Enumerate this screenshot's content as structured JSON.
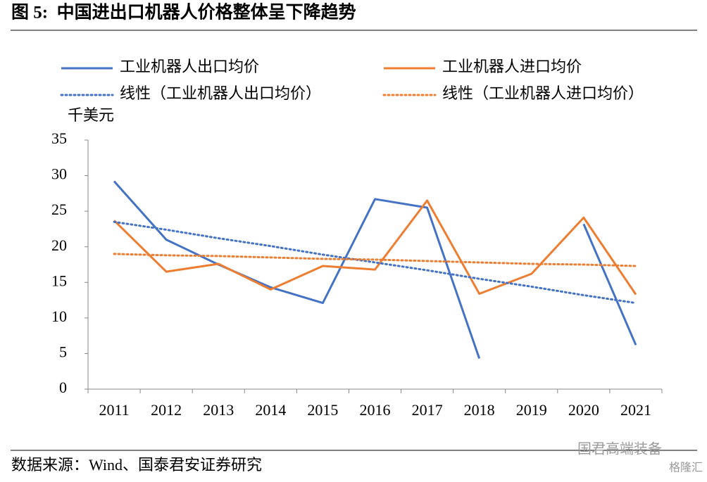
{
  "chart_data": {
    "type": "line",
    "title": "图 5:  中国进出口机器人价格整体呈下降趋势",
    "y_label": "千美元",
    "source": "数据来源：Wind、国泰君安证券研究",
    "watermark": [
      "国君高端装备",
      "格隆汇"
    ],
    "categories": [
      "2011",
      "2012",
      "2013",
      "2014",
      "2015",
      "2016",
      "2017",
      "2018",
      "2019",
      "2020",
      "2021"
    ],
    "series": [
      {
        "name": "工业机器人出口均价",
        "color": "#4472c4",
        "style": "solid",
        "values": [
          29.2,
          21.0,
          17.5,
          14.3,
          12.1,
          26.7,
          25.5,
          4.3,
          null,
          23.2,
          6.2
        ]
      },
      {
        "name": "工业机器人进口均价",
        "color": "#ed7d31",
        "style": "solid",
        "values": [
          23.7,
          16.5,
          17.6,
          14.0,
          17.3,
          16.8,
          26.5,
          13.4,
          16.2,
          24.1,
          13.3
        ]
      },
      {
        "name": "线性（工业机器人出口均价）",
        "color": "#4472c4",
        "style": "dotted",
        "values": [
          23.5,
          22.4,
          21.2,
          20.1,
          18.9,
          17.8,
          16.7,
          15.5,
          14.4,
          13.2,
          12.1
        ]
      },
      {
        "name": "线性（工业机器人进口均价）",
        "color": "#ed7d31",
        "style": "dotted",
        "values": [
          19.0,
          18.8,
          18.7,
          18.5,
          18.3,
          18.2,
          18.0,
          17.8,
          17.6,
          17.5,
          17.3
        ]
      }
    ],
    "ylim": [
      0,
      35
    ],
    "yticks": [
      0,
      5,
      10,
      15,
      20,
      25,
      30,
      35
    ],
    "grid": false
  }
}
